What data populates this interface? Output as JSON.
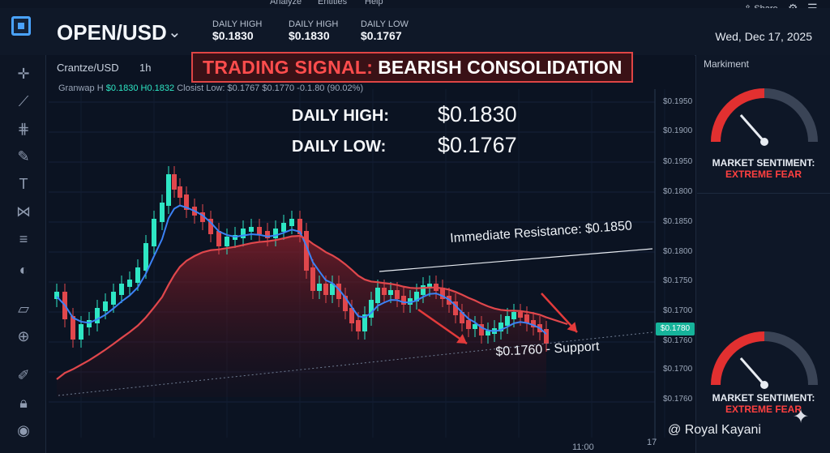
{
  "menubar": {
    "items": [
      "Analyze",
      "Entities",
      "Help"
    ]
  },
  "header": {
    "pair": "OPEN/USD",
    "stats": [
      {
        "label": "DAILY HIGH",
        "value": "$0.1830"
      },
      {
        "label": "DAILY HIGH",
        "value": "$0.1830"
      },
      {
        "label": "DAILY LOW",
        "value": "$0.1767"
      }
    ],
    "date": "Wed, Dec 17, 2025",
    "share_label": "Share"
  },
  "chart": {
    "symbol": "Crantze/USD",
    "timeframe": "1h",
    "ohlc_prefix": "Granwap H",
    "ohlc_h1": "$0.1830",
    "ohlc_h2": "H0.1832",
    "ohlc_rest": "Closist Low: $0.1767  $0.1770  -0.1.80 (90.02%)",
    "signal_prefix": "TRADING SIGNAL:",
    "signal_text": "BEARISH CONSOLIDATION",
    "daily_high_label": "DAILY HIGH:",
    "daily_high_value": "$0.1830",
    "daily_low_label": "DAILY LOW:",
    "daily_low_value": "$0.1767",
    "resistance_label": "Immediate Resistance: $0.1850",
    "support_label": "$0.1760 - Support",
    "current_price": "$0.1780",
    "price_ticks": [
      "$0.1950",
      "$0.1900",
      "$0.1950",
      "$0.1800",
      "$0.1850",
      "$0.1800",
      "$0.1750",
      "$0.1700",
      "$0.1760",
      "$0.1700",
      "$0.1760"
    ],
    "time_tick": "11:00",
    "time_tick_2": "17",
    "colors": {
      "up": "#2ee6c4",
      "down": "#e0474c",
      "ma_fast": "#3b82f6",
      "ma_slow": "#e0474c",
      "accent_red": "#ff4040"
    }
  },
  "sentiment": {
    "panel_title": "Markiment",
    "gauges": [
      {
        "title": "MARKET SENTIMENT:",
        "value": "EXTREME FEAR",
        "level": 0.82
      },
      {
        "title": "MARKET SENTIMENT:",
        "value": "EXTREME FEAR",
        "level": 0.82
      }
    ]
  },
  "watermark": "@ Royal Kayani",
  "tools": [
    "crosshair-icon",
    "trendline-icon",
    "fib-icon",
    "brush-icon",
    "text-icon",
    "pattern-icon",
    "measure-icon",
    "hide-icon",
    "ruler-icon",
    "zoom-icon",
    "marker-icon",
    "lock-icon",
    "eye-icon"
  ]
}
